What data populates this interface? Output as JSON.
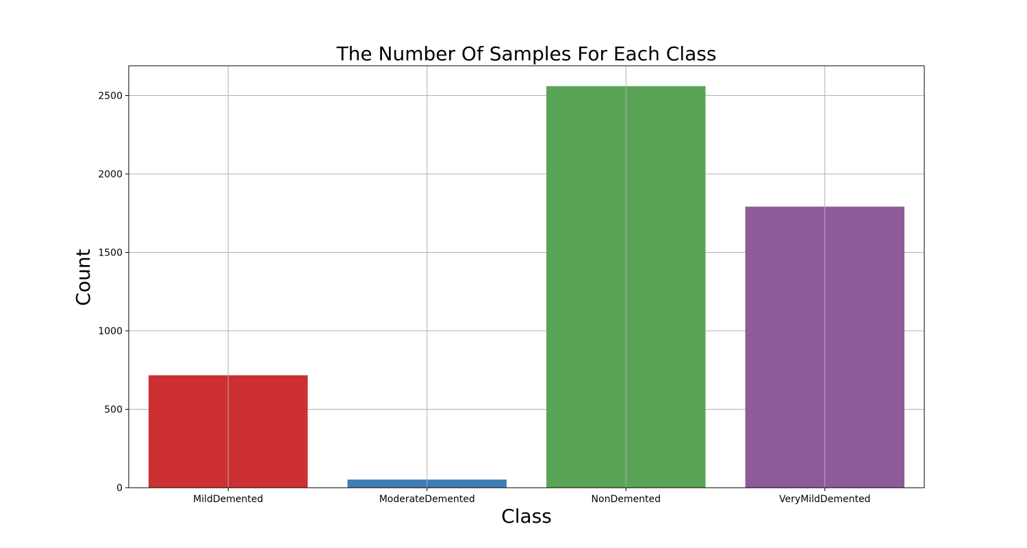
{
  "chart_data": {
    "type": "bar",
    "title": "The Number Of Samples For Each Class",
    "xlabel": "Class",
    "ylabel": "Count",
    "categories": [
      "MildDemented",
      "ModerateDemented",
      "NonDemented",
      "VeryMildDemented"
    ],
    "values": [
      717,
      52,
      2560,
      1792
    ],
    "colors": [
      "#cc3033",
      "#3f7db5",
      "#5aa457",
      "#8f5a9a"
    ],
    "ylim": [
      0,
      2690
    ],
    "yticks": [
      0,
      500,
      1000,
      1500,
      2000,
      2500
    ],
    "grid": true,
    "legend": "none"
  }
}
